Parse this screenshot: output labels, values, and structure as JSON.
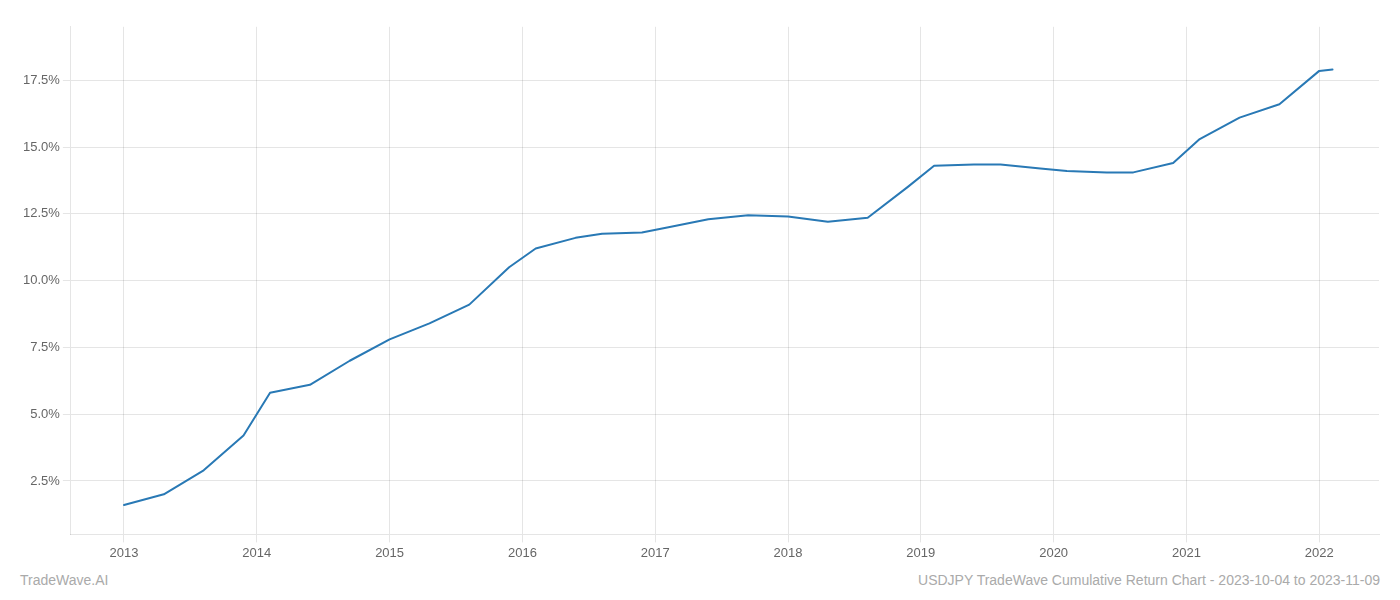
{
  "chart_data": {
    "type": "line",
    "x": [
      2013.0,
      2013.3,
      2013.6,
      2013.9,
      2014.1,
      2014.4,
      2014.7,
      2015.0,
      2015.3,
      2015.6,
      2015.9,
      2016.1,
      2016.4,
      2016.6,
      2016.9,
      2017.1,
      2017.4,
      2017.7,
      2018.0,
      2018.3,
      2018.6,
      2018.9,
      2019.1,
      2019.4,
      2019.6,
      2019.9,
      2020.1,
      2020.4,
      2020.6,
      2020.9,
      2021.1,
      2021.4,
      2021.7,
      2022.0,
      2022.1
    ],
    "values": [
      1.6,
      2.0,
      2.9,
      4.2,
      5.8,
      6.1,
      7.0,
      7.8,
      8.4,
      9.1,
      10.5,
      11.2,
      11.6,
      11.75,
      11.8,
      12.0,
      12.3,
      12.45,
      12.4,
      12.2,
      12.35,
      13.5,
      14.3,
      14.35,
      14.35,
      14.2,
      14.1,
      14.05,
      14.05,
      14.4,
      15.3,
      16.1,
      16.6,
      17.85,
      17.9
    ],
    "color": "#2979b5",
    "xlim": [
      2012.6,
      2022.45
    ],
    "xticks": [
      2013,
      2014,
      2015,
      2016,
      2017,
      2018,
      2019,
      2020,
      2021,
      2022
    ],
    "ylim": [
      0.5,
      19.5
    ],
    "yticks": [
      {
        "value": 2.5,
        "label": "2.5%"
      },
      {
        "value": 5.0,
        "label": "5.0%"
      },
      {
        "value": 7.5,
        "label": "7.5%"
      },
      {
        "value": 10.0,
        "label": "10.0%"
      },
      {
        "value": 12.5,
        "label": "12.5%"
      },
      {
        "value": 15.0,
        "label": "15.0%"
      },
      {
        "value": 17.5,
        "label": "17.5%"
      }
    ],
    "grid": true,
    "annotations": [
      "TradeWave.AI",
      "USDJPY TradeWave Cumulative Return Chart - 2023-10-04 to 2023-11-09"
    ]
  }
}
